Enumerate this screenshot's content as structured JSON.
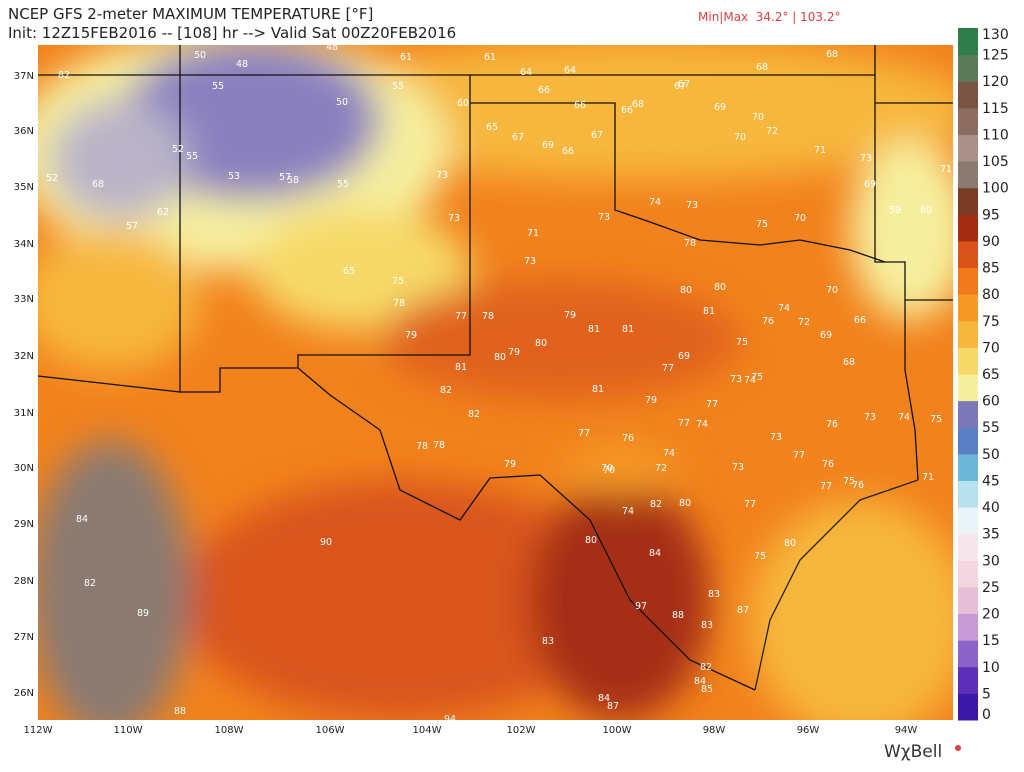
{
  "header": {
    "title": "NCEP GFS 2-meter MAXIMUM TEMPERATURE [°F]",
    "subtitle": "Init: 12Z15FEB2016 -- [108] hr --> Valid Sat 00Z20FEB2016",
    "minmax": "Min|Max  34.2° | 103.2°"
  },
  "map": {
    "longitudes": [
      "112W",
      "110W",
      "108W",
      "106W",
      "104W",
      "102W",
      "100W",
      "98W",
      "96W",
      "94W"
    ],
    "latitudes": [
      "37N",
      "36N",
      "35N",
      "34N",
      "33N",
      "32N",
      "31N",
      "30N",
      "29N",
      "28N",
      "27N",
      "26N"
    ],
    "stations": [
      82,
      50,
      48,
      48,
      61,
      61,
      64,
      64,
      67,
      68,
      68,
      67,
      66,
      55,
      50,
      55,
      60,
      65,
      67,
      69,
      66,
      67,
      66,
      66,
      68,
      69,
      70,
      72,
      70,
      52,
      55,
      53,
      57,
      58,
      55,
      73,
      52,
      68,
      62,
      57,
      73,
      71,
      73,
      73,
      74,
      73,
      75,
      78,
      70,
      71,
      69,
      59,
      60,
      71,
      73,
      65,
      75,
      78,
      77,
      78,
      79,
      81,
      81,
      80,
      80,
      81,
      80,
      79,
      77,
      76,
      75,
      74,
      72,
      70,
      69,
      66,
      79,
      80,
      69,
      68,
      74,
      75,
      77,
      73,
      81,
      82,
      82,
      78,
      78,
      79,
      81,
      79,
      77,
      76,
      73,
      74,
      77,
      76,
      75,
      70,
      72,
      74,
      73,
      74,
      82,
      80,
      80,
      84,
      84,
      90,
      82,
      89,
      97,
      88,
      83,
      83,
      82,
      84,
      85,
      84,
      87,
      88,
      94,
      87,
      83,
      80,
      77,
      76,
      77,
      75,
      73,
      71,
      74,
      75,
      76,
      77,
      70
    ],
    "logo": "WχBell"
  },
  "colorbar": {
    "ticks": [
      0,
      5,
      10,
      15,
      20,
      25,
      30,
      35,
      40,
      45,
      50,
      55,
      60,
      65,
      70,
      75,
      80,
      85,
      90,
      95,
      100,
      105,
      110,
      115,
      120,
      125,
      130
    ],
    "colors": [
      "#3b1aa8",
      "#5b2fb8",
      "#8a64c8",
      "#c79ad6",
      "#e6bfd7",
      "#f3d6df",
      "#f6e6ec",
      "#eaf4f6",
      "#b8e0ee",
      "#6cb6d8",
      "#5a7fc4",
      "#7a78b6",
      "#f6ef9e",
      "#f6d968",
      "#f7b73c",
      "#f59a26",
      "#f07a1a",
      "#d9541a",
      "#a52d12",
      "#7a3a26",
      "#8a7a72",
      "#a89088",
      "#8d6c62",
      "#7b5544",
      "#5b7b5a",
      "#2e7d4a"
    ]
  }
}
